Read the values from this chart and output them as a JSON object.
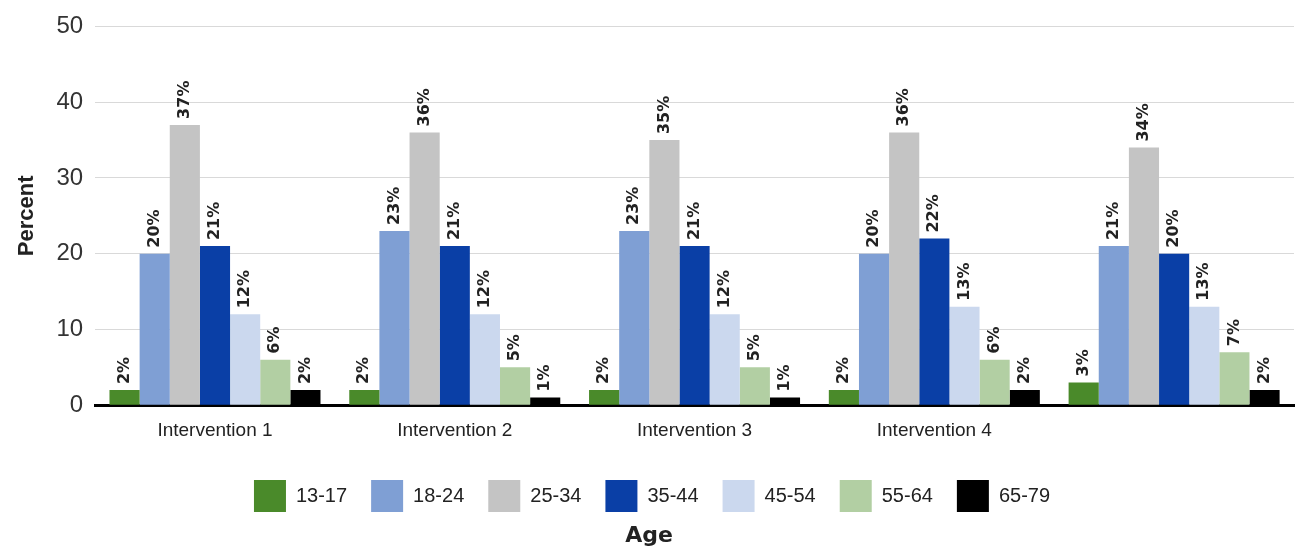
{
  "chart_data": {
    "type": "bar",
    "xlabel": "Age",
    "ylabel": "Percent",
    "categories": [
      "Intervention 1",
      "Intervention 2",
      "Intervention 3",
      "Intervention 4",
      null
    ],
    "series": [
      {
        "name": "13-17",
        "color": "#4a8a2a",
        "values": [
          2,
          2,
          2,
          2,
          3
        ],
        "value_labels": [
          "2%",
          "2%",
          "2%",
          "2%",
          "3%"
        ]
      },
      {
        "name": "18-24",
        "color": "#7f9fd4",
        "values": [
          20,
          23,
          23,
          20,
          21
        ],
        "value_labels": [
          "20%",
          "23%",
          "23%",
          "20%",
          "21%"
        ]
      },
      {
        "name": "25-34",
        "color": "#c4c4c4",
        "values": [
          37,
          36,
          35,
          36,
          34
        ],
        "value_labels": [
          "37%",
          "36%",
          "35%",
          "36%",
          "34%"
        ]
      },
      {
        "name": "35-44",
        "color": "#0a3fa6",
        "values": [
          21,
          21,
          21,
          22,
          20
        ],
        "value_labels": [
          "21%",
          "21%",
          "21%",
          "22%",
          "20%"
        ]
      },
      {
        "name": "45-54",
        "color": "#cbd8ee",
        "values": [
          12,
          12,
          12,
          13,
          13
        ],
        "value_labels": [
          "12%",
          "12%",
          "12%",
          "13%",
          "13%"
        ]
      },
      {
        "name": "55-64",
        "color": "#b2cfa3",
        "values": [
          6,
          5,
          5,
          6,
          7
        ],
        "value_labels": [
          "6%",
          "5%",
          "5%",
          "6%",
          "7%"
        ]
      },
      {
        "name": "65-79",
        "color": "#000000",
        "values": [
          2,
          1,
          1,
          2,
          2
        ],
        "value_labels": [
          "2%",
          "1%",
          "1%",
          "2%",
          "2%"
        ]
      }
    ],
    "ylim": [
      0,
      50
    ],
    "yticks": [
      0,
      10,
      20,
      30,
      40,
      50
    ],
    "grid": "y",
    "legend": "bottom"
  }
}
